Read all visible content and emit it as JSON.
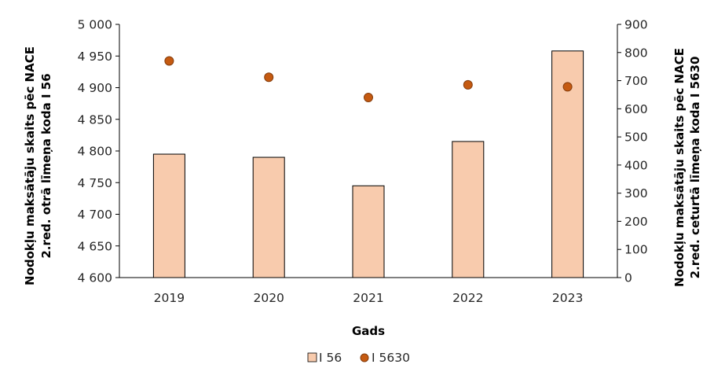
{
  "chart_data": {
    "type": "bar",
    "categories": [
      "2019",
      "2020",
      "2021",
      "2022",
      "2023"
    ],
    "xlabel": "Gads",
    "ylabel_left_line1": "Nodokļu maksātāju skaits pēc NACE",
    "ylabel_left_line2": "2.red. otrā līmeņa koda I 56",
    "ylabel_right_line1": "Nodokļu maksātāju skaits pēc NACE",
    "ylabel_right_line2": "2.red. ceturtā līmeņa koda I 5630",
    "y_left": {
      "min": 4600,
      "max": 5000,
      "step": 50,
      "ticks": [
        "4 600",
        "4 650",
        "4 700",
        "4 750",
        "4 800",
        "4 850",
        "4 900",
        "4 950",
        "5 000"
      ]
    },
    "y_right": {
      "min": 0,
      "max": 900,
      "step": 100,
      "ticks": [
        "0",
        "100",
        "200",
        "300",
        "400",
        "500",
        "600",
        "700",
        "800",
        "900"
      ]
    },
    "series": [
      {
        "name": "I 56",
        "kind": "bar",
        "axis": "left",
        "color": "#F8CBAD",
        "edge": "#000000",
        "values": [
          4795,
          4790,
          4745,
          4815,
          4958
        ]
      },
      {
        "name": "I 5630",
        "kind": "scatter",
        "axis": "right",
        "color": "#C55A11",
        "edge": "#843C0C",
        "values": [
          770,
          712,
          640,
          685,
          678
        ]
      }
    ],
    "grid": false,
    "legend_position": "bottom"
  }
}
